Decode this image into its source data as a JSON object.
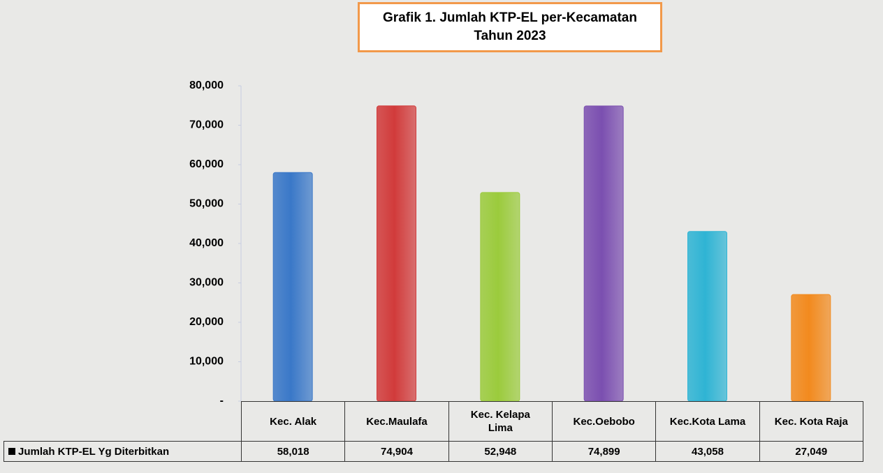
{
  "chart_data": {
    "type": "bar",
    "title": [
      "Grafik  1. Jumlah KTP-EL  per-Kecamatan",
      "Tahun  2023"
    ],
    "categories": [
      "Kec. Alak",
      "Kec.Maulafa",
      "Kec. Kelapa Lima",
      "Kec.Oebobo",
      "Kec.Kota Lama",
      "Kec. Kota Raja"
    ],
    "series": [
      {
        "name": "Jumlah KTP-EL Yg Diterbitkan",
        "color": "#000000",
        "values": [
          58018,
          74904,
          52948,
          74899,
          43058,
          27049
        ],
        "value_labels": [
          "58,018",
          "74,904",
          "52,948",
          "74,899",
          "43,058",
          "27,049"
        ]
      }
    ],
    "colors": [
      "#3a78c8",
      "#d13b3b",
      "#9bcb3c",
      "#7b4fb0",
      "#2fb4d4",
      "#f28a1e"
    ],
    "ylim": [
      0,
      80000
    ],
    "yticks": [
      {
        "value": 0,
        "label": "-"
      },
      {
        "value": 10000,
        "label": "10,000"
      },
      {
        "value": 20000,
        "label": "20,000"
      },
      {
        "value": 30000,
        "label": "30,000"
      },
      {
        "value": 40000,
        "label": "40,000"
      },
      {
        "value": 50000,
        "label": "50,000"
      },
      {
        "value": 60000,
        "label": "60,000"
      },
      {
        "value": 70000,
        "label": "70,000"
      },
      {
        "value": 80000,
        "label": "80,000"
      }
    ],
    "grid": false
  }
}
